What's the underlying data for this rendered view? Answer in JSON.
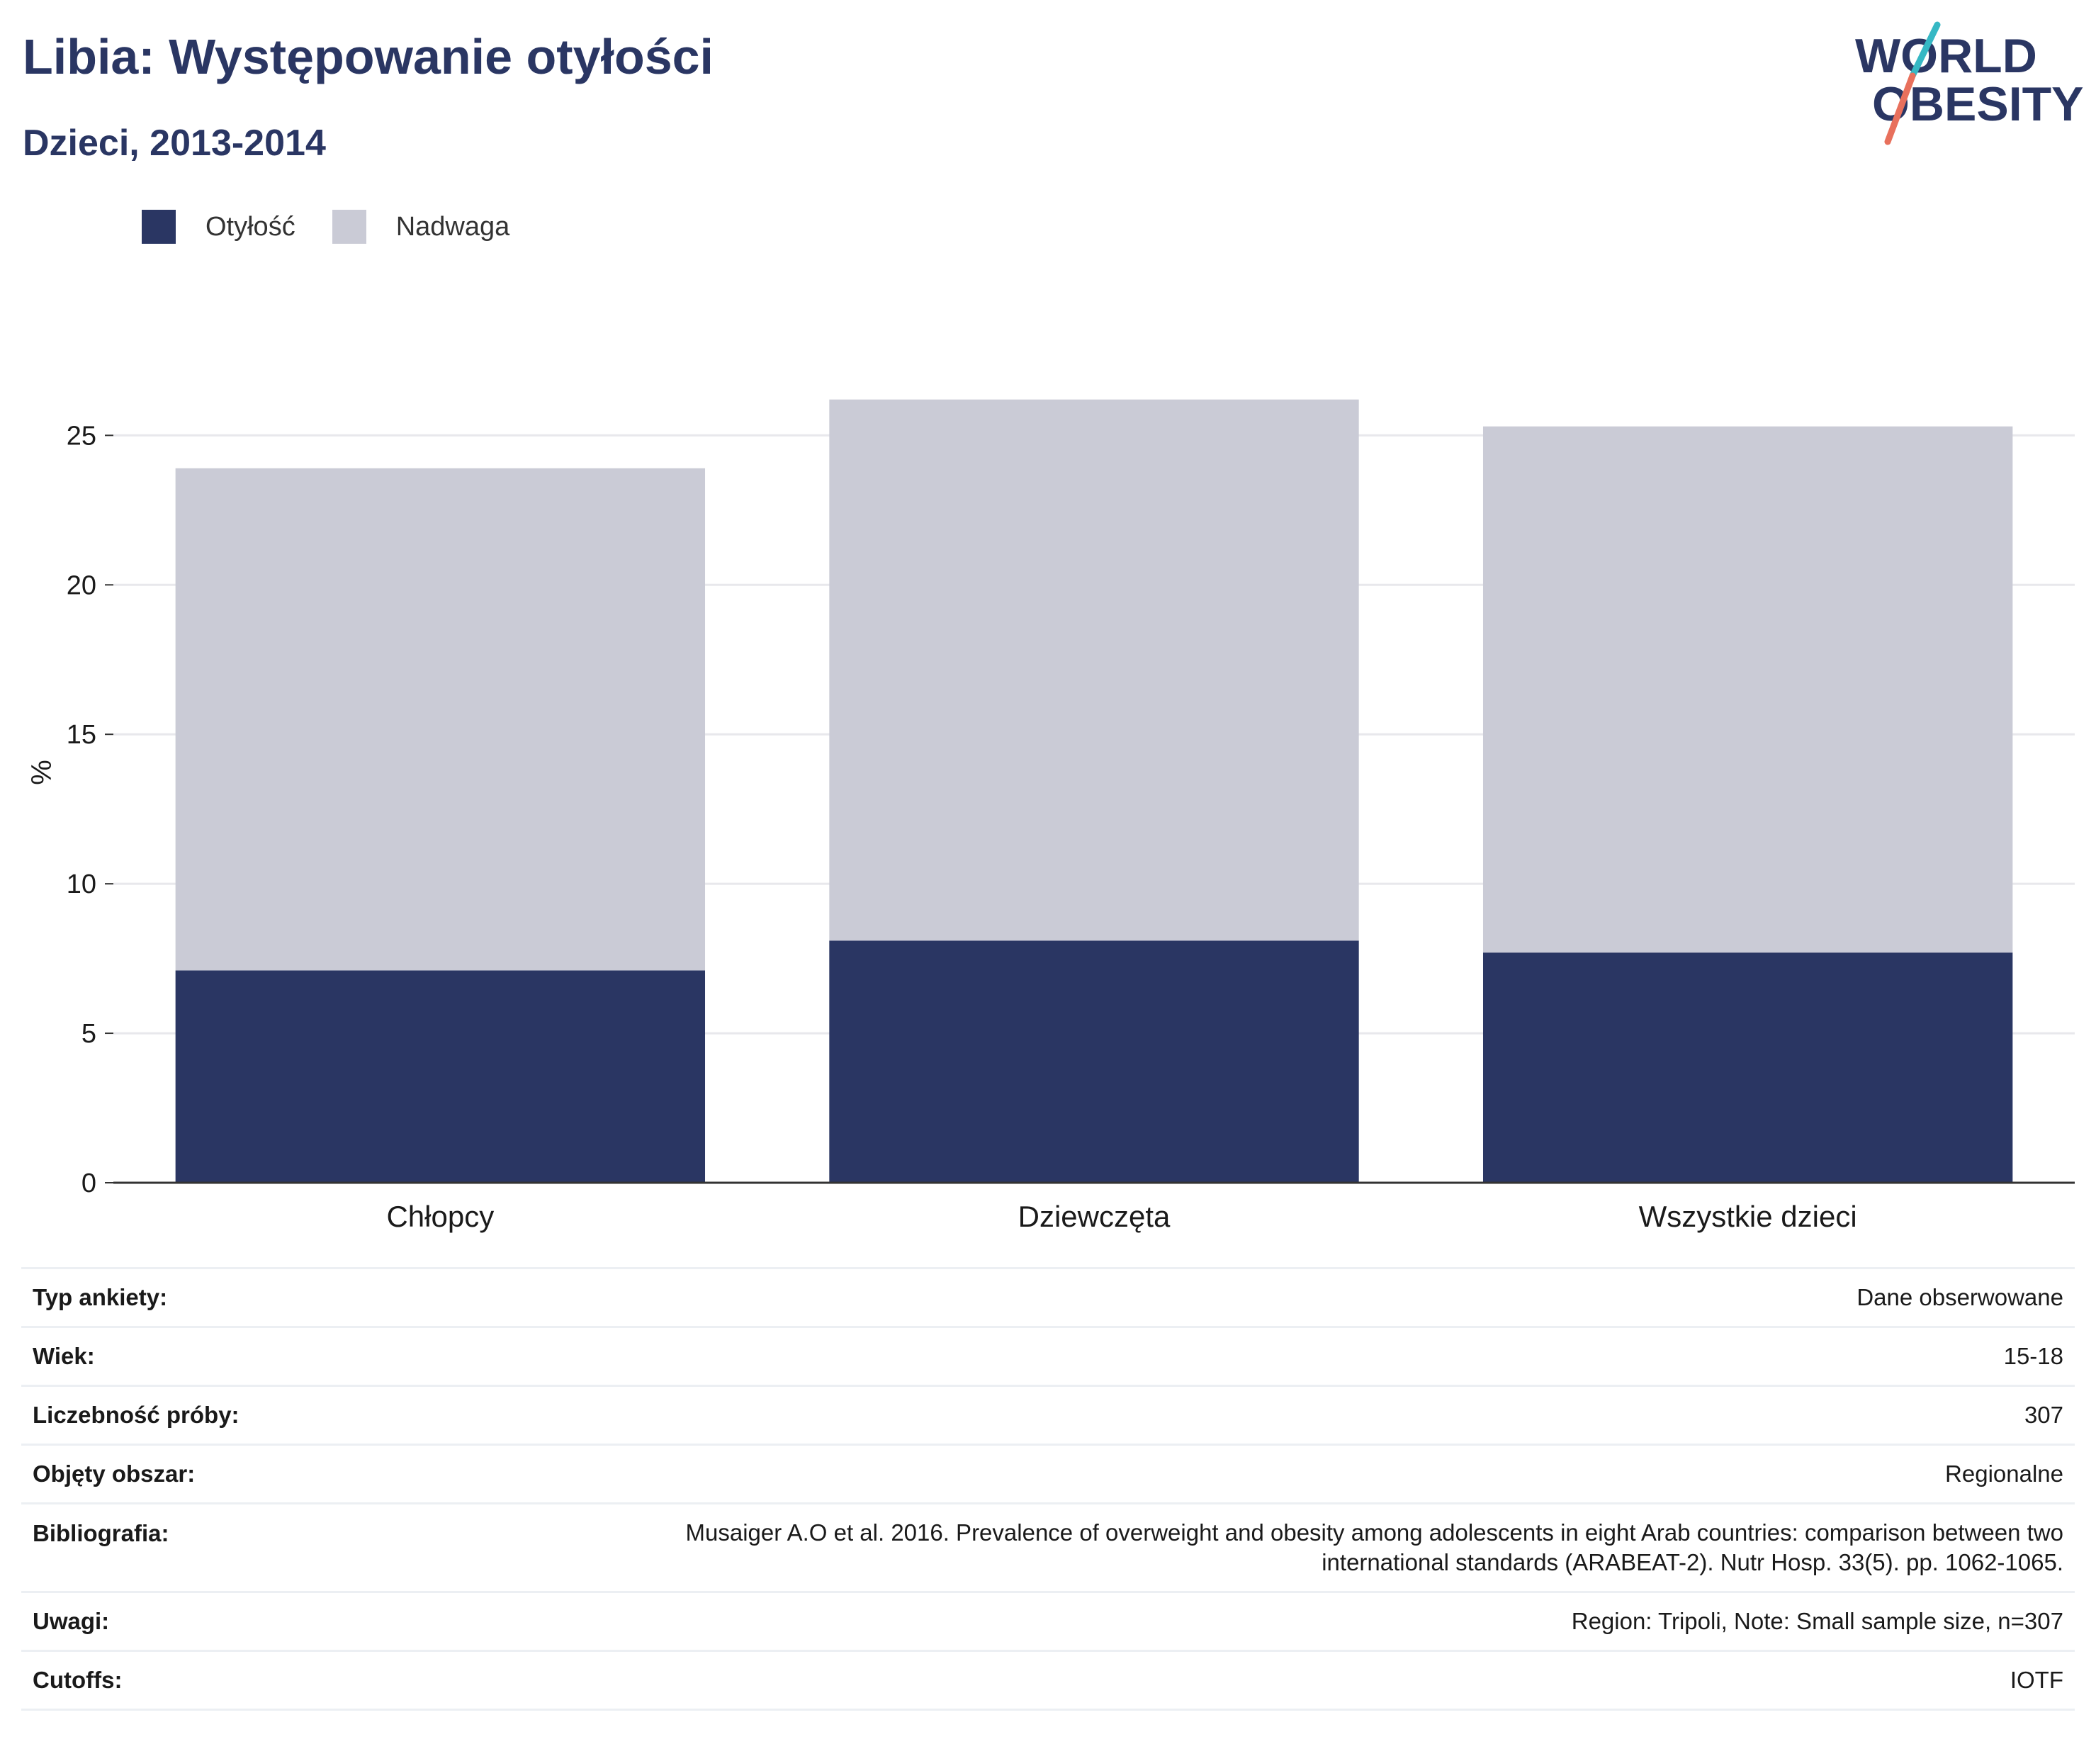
{
  "header": {
    "title": "Libia: Występowanie otyłości",
    "subtitle": "Dzieci, 2013-2014"
  },
  "logo": {
    "line1": "WORLD",
    "line2": "OBESITY",
    "colors": {
      "text": "#2a3663",
      "slash_top": "#36b8c4",
      "slash_bottom": "#e8705c"
    }
  },
  "legend": [
    {
      "label": "Otyłość",
      "color": "#2a3663"
    },
    {
      "label": "Nadwaga",
      "color": "#cacbd6"
    }
  ],
  "chart_data": {
    "type": "bar",
    "stacked": true,
    "categories": [
      "Chłopcy",
      "Dziewczęta",
      "Wszystkie dzieci"
    ],
    "series": [
      {
        "name": "Otyłość",
        "values": [
          7.1,
          8.1,
          7.7
        ],
        "color": "#2a3663"
      },
      {
        "name": "Nadwaga",
        "values": [
          16.8,
          18.1,
          17.6
        ],
        "color": "#cacbd6"
      }
    ],
    "ylabel": "%",
    "ylim": [
      0,
      27
    ],
    "yticks": [
      0,
      5,
      10,
      15,
      20,
      25
    ],
    "grid": true,
    "legend_position": "top-left"
  },
  "info": [
    {
      "key": "Typ ankiety:",
      "value": "Dane obserwowane"
    },
    {
      "key": "Wiek:",
      "value": "15-18"
    },
    {
      "key": "Liczebność próby:",
      "value": "307"
    },
    {
      "key": "Objęty obszar:",
      "value": "Regionalne"
    },
    {
      "key": "Bibliografia:",
      "value_lines": [
        "Musaiger A.O et al. 2016. Prevalence of overweight and obesity among adolescents in eight Arab countries: comparison between two",
        "international standards (ARABEAT-2). Nutr Hosp. 33(5). pp. 1062-1065."
      ]
    },
    {
      "key": "Uwagi:",
      "value": "Region: Tripoli, Note: Small sample size, n=307"
    },
    {
      "key": "Cutoffs:",
      "value": "IOTF"
    }
  ]
}
